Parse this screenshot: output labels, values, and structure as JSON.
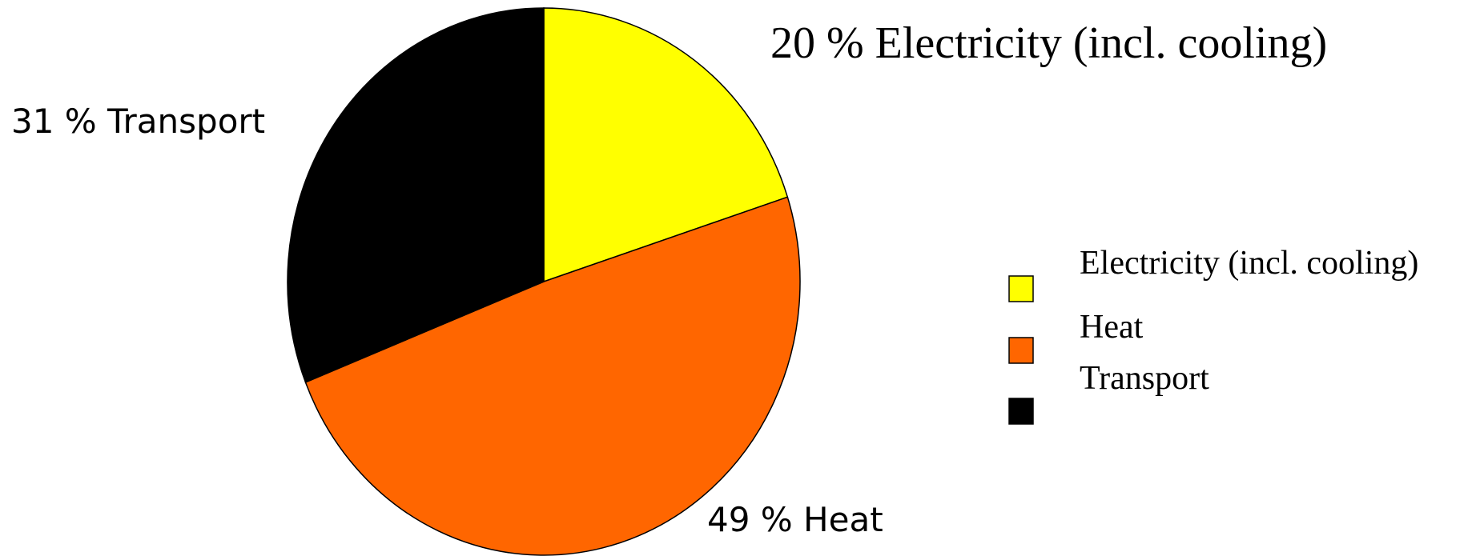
{
  "chart_data": {
    "type": "pie",
    "categories": [
      "Electricity (incl. cooling)",
      "Heat",
      "Transport"
    ],
    "values": [
      20,
      49,
      31
    ],
    "value_labels": [
      "20 % Electricity (incl. cooling)",
      "49 % Heat",
      "31 % Transport"
    ],
    "colors": [
      "#ffff00",
      "#ff6600",
      "#000000"
    ],
    "legend": "right"
  }
}
